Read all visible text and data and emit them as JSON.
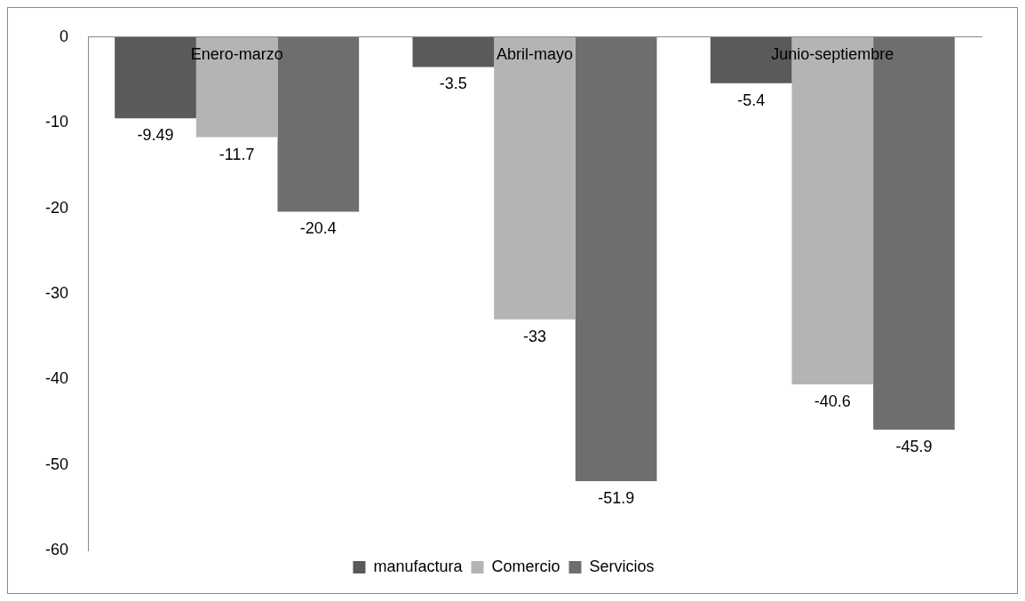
{
  "chart_data": {
    "type": "bar",
    "categories": [
      "Enero-marzo",
      "Abril-mayo",
      "Junio-septiembre"
    ],
    "series": [
      {
        "name": "manufactura",
        "color": "#5a5a5a",
        "values": [
          -9.49,
          -3.5,
          -5.4
        ]
      },
      {
        "name": "Comercio",
        "color": "#b4b4b4",
        "values": [
          -11.7,
          -33,
          -40.6
        ]
      },
      {
        "name": "Servicios",
        "color": "#6e6e6e",
        "values": [
          -20.4,
          -51.9,
          -45.9
        ]
      }
    ],
    "ylim": [
      -60,
      0
    ],
    "yticks": [
      0,
      -10,
      -20,
      -30,
      -40,
      -50,
      -60
    ],
    "data_labels": true,
    "legend": "bottom"
  }
}
